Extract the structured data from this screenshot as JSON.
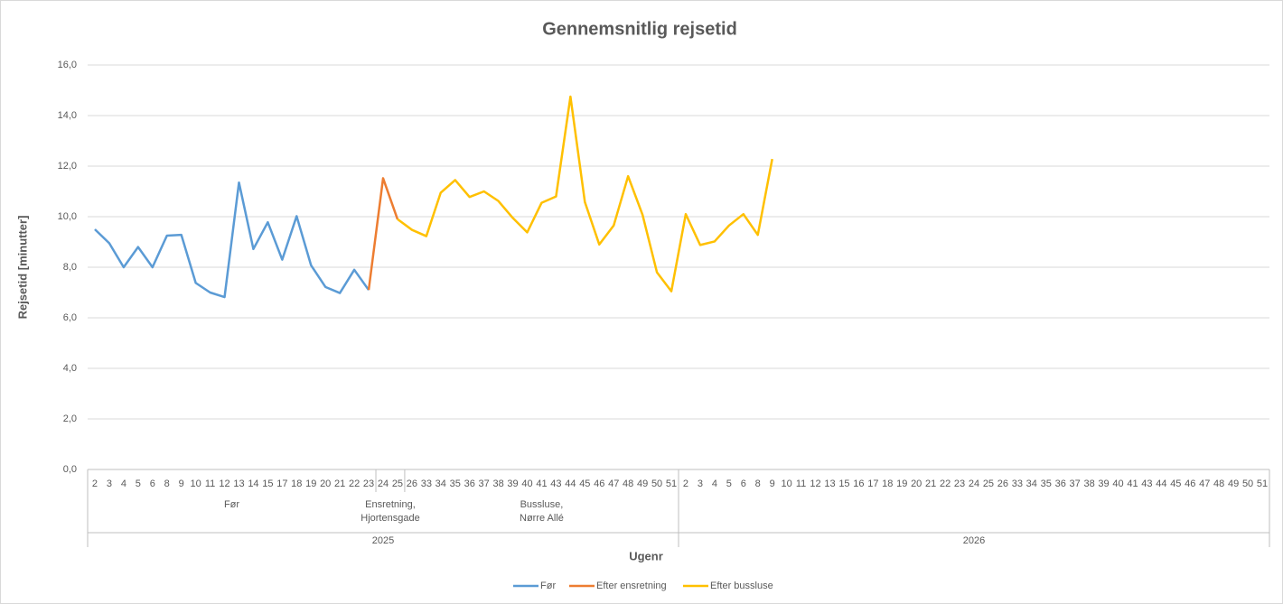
{
  "chart_data": {
    "type": "line",
    "title": "Gennemsnitlig rejsetid",
    "y_label": "Rejsetid [minutter]",
    "x_label": "Ugenr",
    "years": [
      {
        "label": "2025",
        "groups": [
          {
            "label": "Før",
            "weeks": [
              "2",
              "3",
              "4",
              "5",
              "6",
              "8",
              "9",
              "10",
              "11",
              "12",
              "13",
              "14",
              "15",
              "17",
              "18",
              "19",
              "20",
              "21",
              "22",
              "23"
            ]
          },
          {
            "label": "Ensretning,\nHjortensgade",
            "weeks": [
              "24",
              "25"
            ]
          },
          {
            "label": "Bussluse,\nNørre Allé",
            "weeks": [
              "26",
              "33",
              "34",
              "35",
              "36",
              "37",
              "38",
              "39",
              "40",
              "41",
              "43",
              "44",
              "45",
              "46",
              "47",
              "48",
              "49",
              "50",
              "51"
            ]
          }
        ]
      },
      {
        "label": "2026",
        "groups": [
          {
            "label": null,
            "weeks": [
              "2",
              "3",
              "4",
              "5",
              "6",
              "8",
              "9",
              "10",
              "11",
              "12",
              "13",
              "15",
              "16",
              "17",
              "18",
              "19",
              "20",
              "21",
              "22",
              "23",
              "24",
              "25",
              "26",
              "33",
              "34",
              "35",
              "36",
              "37",
              "38",
              "39",
              "40",
              "41",
              "43",
              "44",
              "45",
              "46",
              "47",
              "48",
              "49",
              "50",
              "51"
            ]
          }
        ]
      }
    ],
    "series": [
      {
        "name": "Før",
        "color": "#5b9bd5",
        "values": [
          9.5,
          8.95,
          8.0,
          8.8,
          8.0,
          9.25,
          9.28,
          7.38,
          7.0,
          6.82,
          11.35,
          8.72,
          9.78,
          8.3,
          10.02,
          8.08,
          7.22,
          6.98,
          7.9,
          7.1,
          null,
          null,
          null,
          null,
          null,
          null,
          null,
          null,
          null,
          null,
          null,
          null,
          null,
          null,
          null,
          null,
          null,
          null,
          null,
          null,
          null,
          null,
          null,
          null,
          null,
          null,
          null,
          null,
          null,
          null,
          null,
          null,
          null,
          null,
          null,
          null,
          null,
          null,
          null,
          null,
          null,
          null,
          null,
          null,
          null,
          null,
          null,
          null,
          null,
          null,
          null,
          null,
          null,
          null,
          null,
          null,
          null,
          null,
          null,
          null,
          null,
          null
        ]
      },
      {
        "name": "Efter ensretning",
        "color": "#ed7d31",
        "values": [
          null,
          null,
          null,
          null,
          null,
          null,
          null,
          null,
          null,
          null,
          null,
          null,
          null,
          null,
          null,
          null,
          null,
          null,
          null,
          7.1,
          11.52,
          9.9,
          null,
          null,
          null,
          null,
          null,
          null,
          null,
          null,
          null,
          null,
          null,
          null,
          null,
          null,
          null,
          null,
          null,
          null,
          null,
          null,
          null,
          null,
          null,
          null,
          null,
          null,
          null,
          null,
          null,
          null,
          null,
          null,
          null,
          null,
          null,
          null,
          null,
          null,
          null,
          null,
          null,
          null,
          null,
          null,
          null,
          null,
          null,
          null,
          null,
          null,
          null,
          null,
          null,
          null,
          null,
          null,
          null,
          null,
          null,
          null
        ]
      },
      {
        "name": "Efter bussluse",
        "color": "#ffc000",
        "values": [
          null,
          null,
          null,
          null,
          null,
          null,
          null,
          null,
          null,
          null,
          null,
          null,
          null,
          null,
          null,
          null,
          null,
          null,
          null,
          null,
          null,
          9.9,
          9.48,
          9.23,
          10.95,
          11.45,
          10.78,
          11.0,
          10.62,
          9.95,
          9.38,
          10.55,
          10.8,
          14.75,
          10.58,
          8.9,
          9.65,
          11.6,
          10.08,
          7.8,
          7.05,
          10.1,
          8.88,
          9.02,
          9.65,
          10.1,
          9.28,
          12.28,
          null,
          null,
          null,
          null,
          null,
          null,
          null,
          null,
          null,
          null,
          null,
          null,
          null,
          null,
          null,
          null,
          null,
          null,
          null,
          null,
          null,
          null,
          null,
          null,
          null,
          null,
          null,
          null,
          null,
          null,
          null,
          null,
          null,
          null
        ]
      }
    ],
    "ylim": [
      0,
      16
    ],
    "yticks": [
      {
        "value": 0,
        "label": "0,0"
      },
      {
        "value": 2,
        "label": "2,0"
      },
      {
        "value": 4,
        "label": "4,0"
      },
      {
        "value": 6,
        "label": "6,0"
      },
      {
        "value": 8,
        "label": "8,0"
      },
      {
        "value": 10,
        "label": "10,0"
      },
      {
        "value": 12,
        "label": "12,0"
      },
      {
        "value": 14,
        "label": "14,0"
      },
      {
        "value": 16,
        "label": "16,0"
      }
    ],
    "grid": true,
    "legend": "bottom"
  }
}
